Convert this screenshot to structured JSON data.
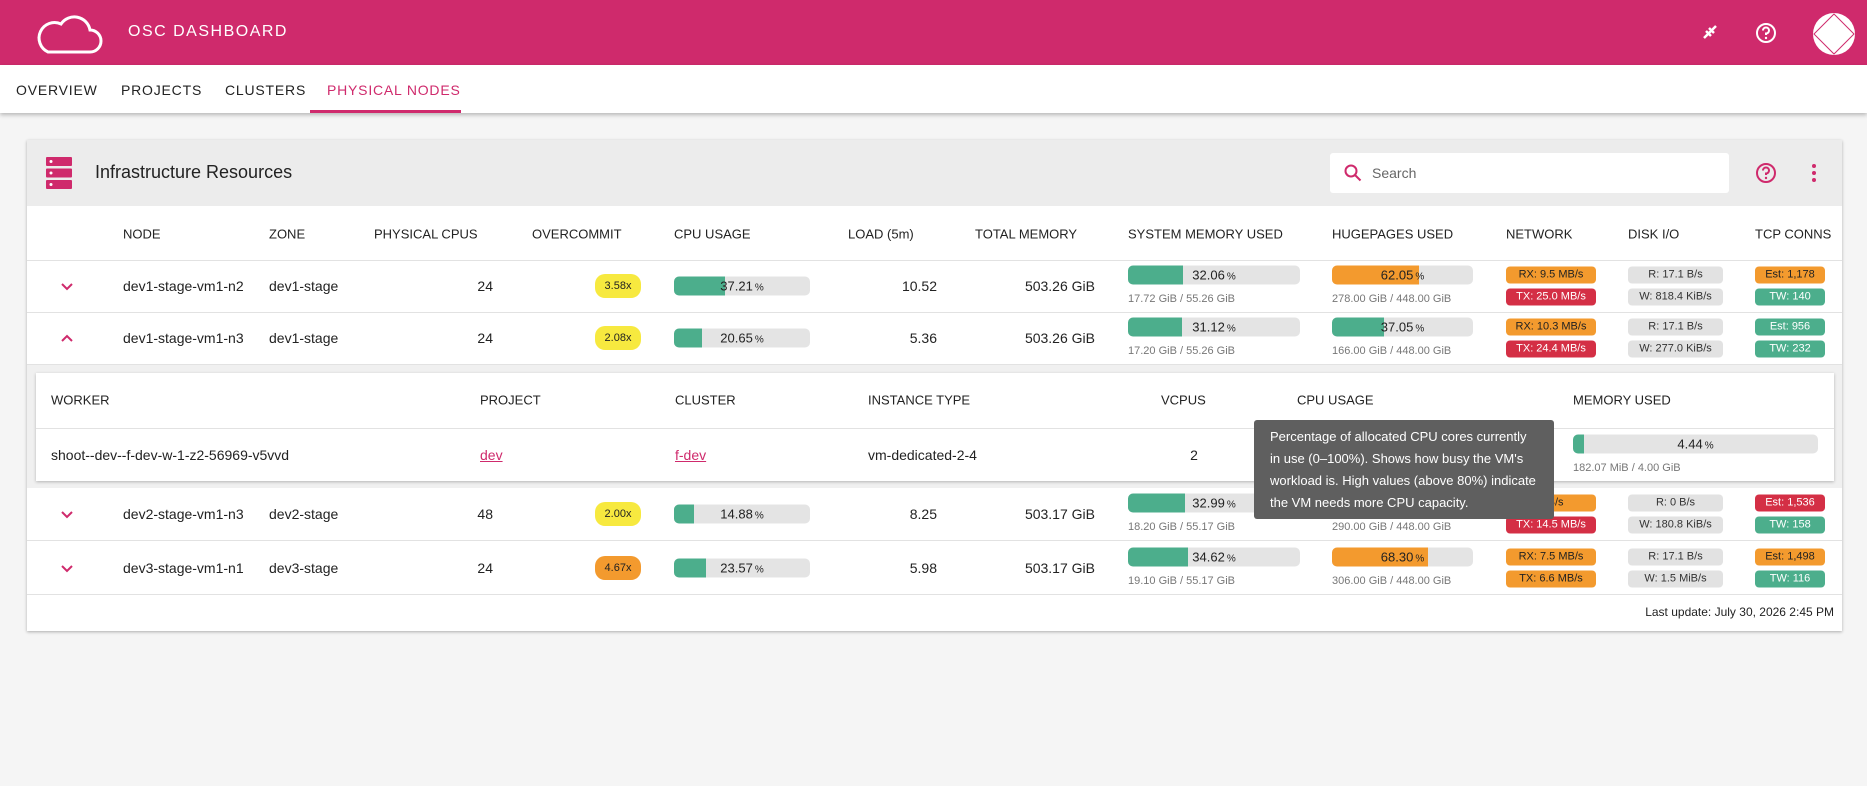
{
  "header": {
    "title": "OSC DASHBOARD"
  },
  "tabs": [
    "OVERVIEW",
    "PROJECTS",
    "CLUSTERS",
    "PHYSICAL NODES"
  ],
  "active_tab": 3,
  "card": {
    "title": "Infrastructure Resources",
    "search_placeholder": "Search"
  },
  "table": {
    "columns": [
      "NODE",
      "ZONE",
      "PHYSICAL CPUS",
      "OVERCOMMIT",
      "CPU USAGE",
      "LOAD (5m)",
      "TOTAL MEMORY",
      "SYSTEM MEMORY USED",
      "HUGEPAGES USED",
      "NETWORK",
      "DISK I/O",
      "TCP CONNS"
    ],
    "expanded_row": 1,
    "rows": [
      {
        "node": "dev1-stage-vm1-n2",
        "zone": "dev1-stage",
        "cpus": 24,
        "overcommit": {
          "label": "3.58x",
          "level": "yellow"
        },
        "cpu": {
          "value": "37.21",
          "unit": "%"
        },
        "load": 10.52,
        "total_memory": "503.26 GiB",
        "system_memory": {
          "value": "32.06",
          "unit": "%",
          "detail": "17.72 GiB / 55.26 GiB"
        },
        "hugepages": {
          "value": "62.05",
          "unit": "%",
          "detail": "278.00 GiB / 448.00 GiB",
          "level": "orange"
        },
        "network": [
          {
            "label": "RX: 9.5 MB/s",
            "level": "orange"
          },
          {
            "label": "TX: 25.0 MB/s",
            "level": "red"
          }
        ],
        "disk": [
          {
            "label": "R: 17.1 B/s",
            "level": "gray"
          },
          {
            "label": "W: 818.4 KiB/s",
            "level": "gray"
          }
        ],
        "tcp": [
          {
            "label": "Est: 1,178",
            "level": "orange"
          },
          {
            "label": "TW: 140",
            "level": "green"
          }
        ]
      },
      {
        "node": "dev1-stage-vm1-n3",
        "zone": "dev1-stage",
        "cpus": 24,
        "overcommit": {
          "label": "2.08x",
          "level": "yellow"
        },
        "cpu": {
          "value": "20.65",
          "unit": "%"
        },
        "load": 5.36,
        "total_memory": "503.26 GiB",
        "system_memory": {
          "value": "31.12",
          "unit": "%",
          "detail": "17.20 GiB / 55.26 GiB"
        },
        "hugepages": {
          "value": "37.05",
          "unit": "%",
          "detail": "166.00 GiB / 448.00 GiB",
          "level": "green"
        },
        "network": [
          {
            "label": "RX: 10.3 MB/s",
            "level": "orange"
          },
          {
            "label": "TX: 24.4 MB/s",
            "level": "red"
          }
        ],
        "disk": [
          {
            "label": "R: 17.1 B/s",
            "level": "gray"
          },
          {
            "label": "W: 277.0 KiB/s",
            "level": "gray"
          }
        ],
        "tcp": [
          {
            "label": "Est: 956",
            "level": "green"
          },
          {
            "label": "TW: 232",
            "level": "green"
          }
        ]
      },
      {
        "node": "dev2-stage-vm1-n3",
        "zone": "dev2-stage",
        "cpus": 48,
        "overcommit": {
          "label": "2.00x",
          "level": "yellow"
        },
        "cpu": {
          "value": "14.88",
          "unit": "%"
        },
        "load": 8.25,
        "total_memory": "503.17 GiB",
        "system_memory": {
          "value": "32.99",
          "unit": "%",
          "detail": "18.20 GiB / 55.17 GiB"
        },
        "hugepages": {
          "detail": "290.00 GiB / 448.00 GiB",
          "level": "orange"
        },
        "network": [
          {
            "label": "MB/s",
            "level": "orange"
          },
          {
            "label": "TX: 14.5 MB/s",
            "level": "red"
          }
        ],
        "disk": [
          {
            "label": "R: 0 B/s",
            "level": "gray"
          },
          {
            "label": "W: 180.8 KiB/s",
            "level": "gray"
          }
        ],
        "tcp": [
          {
            "label": "Est: 1,536",
            "level": "red"
          },
          {
            "label": "TW: 158",
            "level": "green"
          }
        ]
      },
      {
        "node": "dev3-stage-vm1-n1",
        "zone": "dev3-stage",
        "cpus": 24,
        "overcommit": {
          "label": "4.67x",
          "level": "orange"
        },
        "cpu": {
          "value": "23.57",
          "unit": "%"
        },
        "load": 5.98,
        "total_memory": "503.17 GiB",
        "system_memory": {
          "value": "34.62",
          "unit": "%",
          "detail": "19.10 GiB / 55.17 GiB"
        },
        "hugepages": {
          "value": "68.30",
          "unit": "%",
          "detail": "306.00 GiB / 448.00 GiB",
          "level": "orange"
        },
        "network": [
          {
            "label": "RX: 7.5 MB/s",
            "level": "orange"
          },
          {
            "label": "TX: 6.6 MB/s",
            "level": "orange"
          }
        ],
        "disk": [
          {
            "label": "R: 17.1 B/s",
            "level": "gray"
          },
          {
            "label": "W: 1.5 MiB/s",
            "level": "gray"
          }
        ],
        "tcp": [
          {
            "label": "Est: 1,498",
            "level": "orange"
          },
          {
            "label": "TW: 116",
            "level": "green"
          }
        ]
      }
    ]
  },
  "workers": {
    "columns": [
      "WORKER",
      "PROJECT",
      "CLUSTER",
      "INSTANCE TYPE",
      "VCPUS",
      "CPU USAGE",
      "MEMORY USED"
    ],
    "rows": [
      {
        "worker": "shoot--dev--f-dev-w-1-z2-56969-v5vvd",
        "project": "dev",
        "cluster": "f-dev",
        "instance_type": "vm-dedicated-2-4",
        "vcpus": 2,
        "memory": {
          "value": "4.44",
          "unit": "%",
          "detail": "182.07 MiB / 4.00 GiB"
        }
      }
    ]
  },
  "tooltip": "Percentage of allocated CPU cores currently in use (0–100%). Shows how busy the VM's workload is. High values (above 80%) indicate the VM needs more CPU capacity.",
  "footer": "Last update: July 30, 2026 2:45 PM"
}
